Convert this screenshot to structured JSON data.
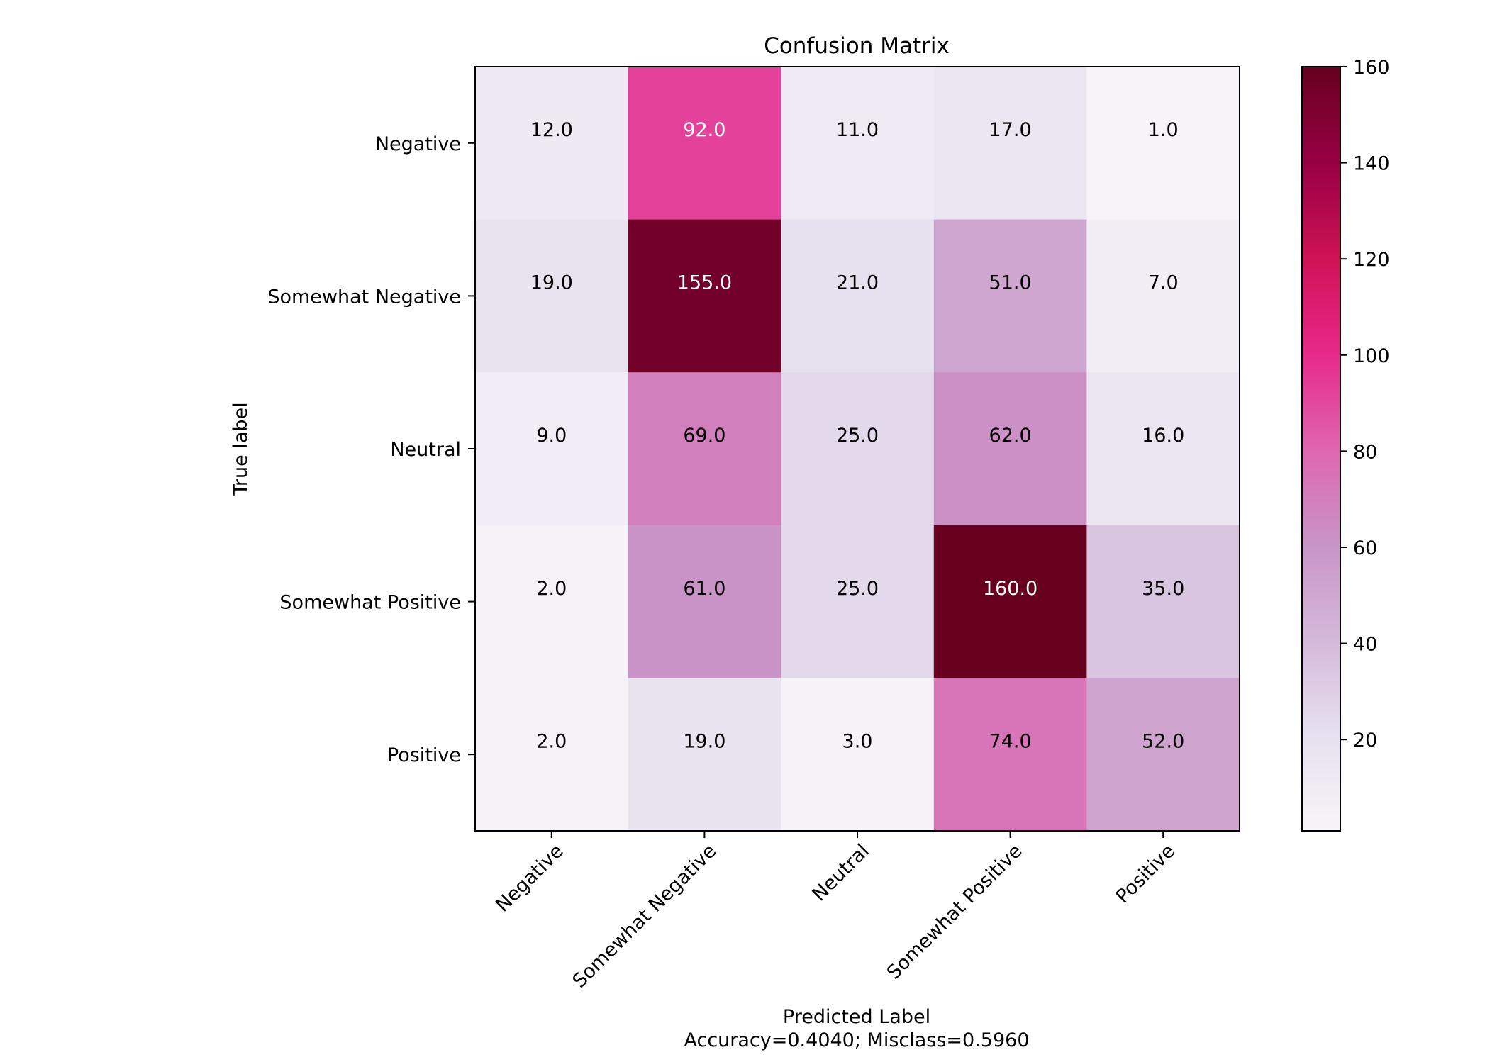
{
  "chart_data": {
    "type": "heatmap",
    "title": "Confusion Matrix",
    "xlabel": "Predicted Label",
    "xlabel_sub": "Accuracy=0.4040; Misclass=0.5960",
    "ylabel": "True label",
    "row_labels": [
      "Negative",
      "Somewhat Negative",
      "Neutral",
      "Somewhat Positive",
      "Positive"
    ],
    "col_labels": [
      "Negative",
      "Somewhat Negative",
      "Neutral",
      "Somewhat Positive",
      "Positive"
    ],
    "values": [
      [
        12,
        92,
        11,
        17,
        1
      ],
      [
        19,
        155,
        21,
        51,
        7
      ],
      [
        9,
        69,
        25,
        62,
        16
      ],
      [
        2,
        61,
        25,
        160,
        35
      ],
      [
        2,
        19,
        3,
        74,
        52
      ]
    ],
    "cell_labels": [
      [
        "12.0",
        "92.0",
        "11.0",
        "17.0",
        "1.0"
      ],
      [
        "19.0",
        "155.0",
        "21.0",
        "51.0",
        "7.0"
      ],
      [
        "9.0",
        "69.0",
        "25.0",
        "62.0",
        "16.0"
      ],
      [
        "2.0",
        "61.0",
        "25.0",
        "160.0",
        "35.0"
      ],
      [
        "2.0",
        "19.0",
        "3.0",
        "74.0",
        "52.0"
      ]
    ],
    "vmin": 1,
    "vmax": 160,
    "colormap": "PuRd",
    "colorbar_ticks": [
      20,
      40,
      60,
      80,
      100,
      120,
      140,
      160
    ],
    "colorbar_tick_labels": [
      "20",
      "40",
      "60",
      "80",
      "100",
      "120",
      "140",
      "160"
    ],
    "text_threshold": 80,
    "text_color_light": "#ffffff",
    "text_color_dark": "#000000",
    "colormap_stops": [
      "#f7f4f9",
      "#e7e1ef",
      "#d4b9da",
      "#c994c7",
      "#df65b0",
      "#e7298a",
      "#ce1256",
      "#980043",
      "#67001f"
    ]
  }
}
